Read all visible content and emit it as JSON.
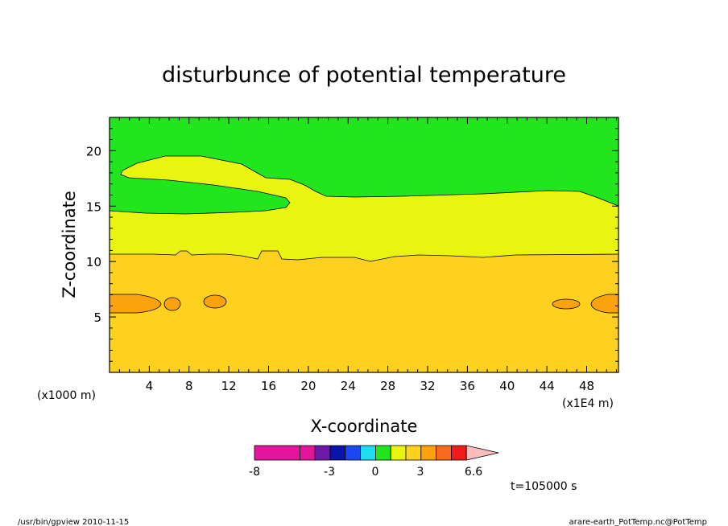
{
  "chart_data": {
    "type": "heatmap",
    "title": "disturbunce of potential temperature",
    "xlabel": "X-coordinate",
    "ylabel": "Z-coordinate",
    "x_unit": "(x1E4 m)",
    "y_unit": "(x1000 m)",
    "x_ticks": [
      "4",
      "8",
      "12",
      "16",
      "20",
      "24",
      "28",
      "32",
      "36",
      "40",
      "44",
      "48"
    ],
    "y_ticks": [
      "5",
      "10",
      "15",
      "20"
    ],
    "xlim": [
      0,
      51.2
    ],
    "ylim": [
      0,
      23
    ],
    "time_label": "t=105000 s",
    "colorbar": {
      "labels": [
        "-8",
        "-3",
        "0",
        "3",
        "6.6"
      ],
      "colors": [
        "#e1169c",
        "#e1169c",
        "#6a1aa6",
        "#0a14a8",
        "#1b48f0",
        "#20dcf0",
        "#22e61d",
        "#eaf50f",
        "#fdd11d",
        "#fca20d",
        "#f86a1e",
        "#f21b1c",
        "#fa7d7d",
        "#fbbcbc"
      ]
    },
    "regions": [
      {
        "name": "green",
        "color": "#22e61d"
      },
      {
        "name": "yellow",
        "color": "#eaf50f"
      },
      {
        "name": "gold",
        "color": "#fdd11d"
      },
      {
        "name": "orange",
        "color": "#fca20d"
      }
    ]
  },
  "footer": {
    "left": "/usr/bin/gpview  2010-11-15",
    "right": "arare-earth_PotTemp.nc@PotTemp"
  }
}
